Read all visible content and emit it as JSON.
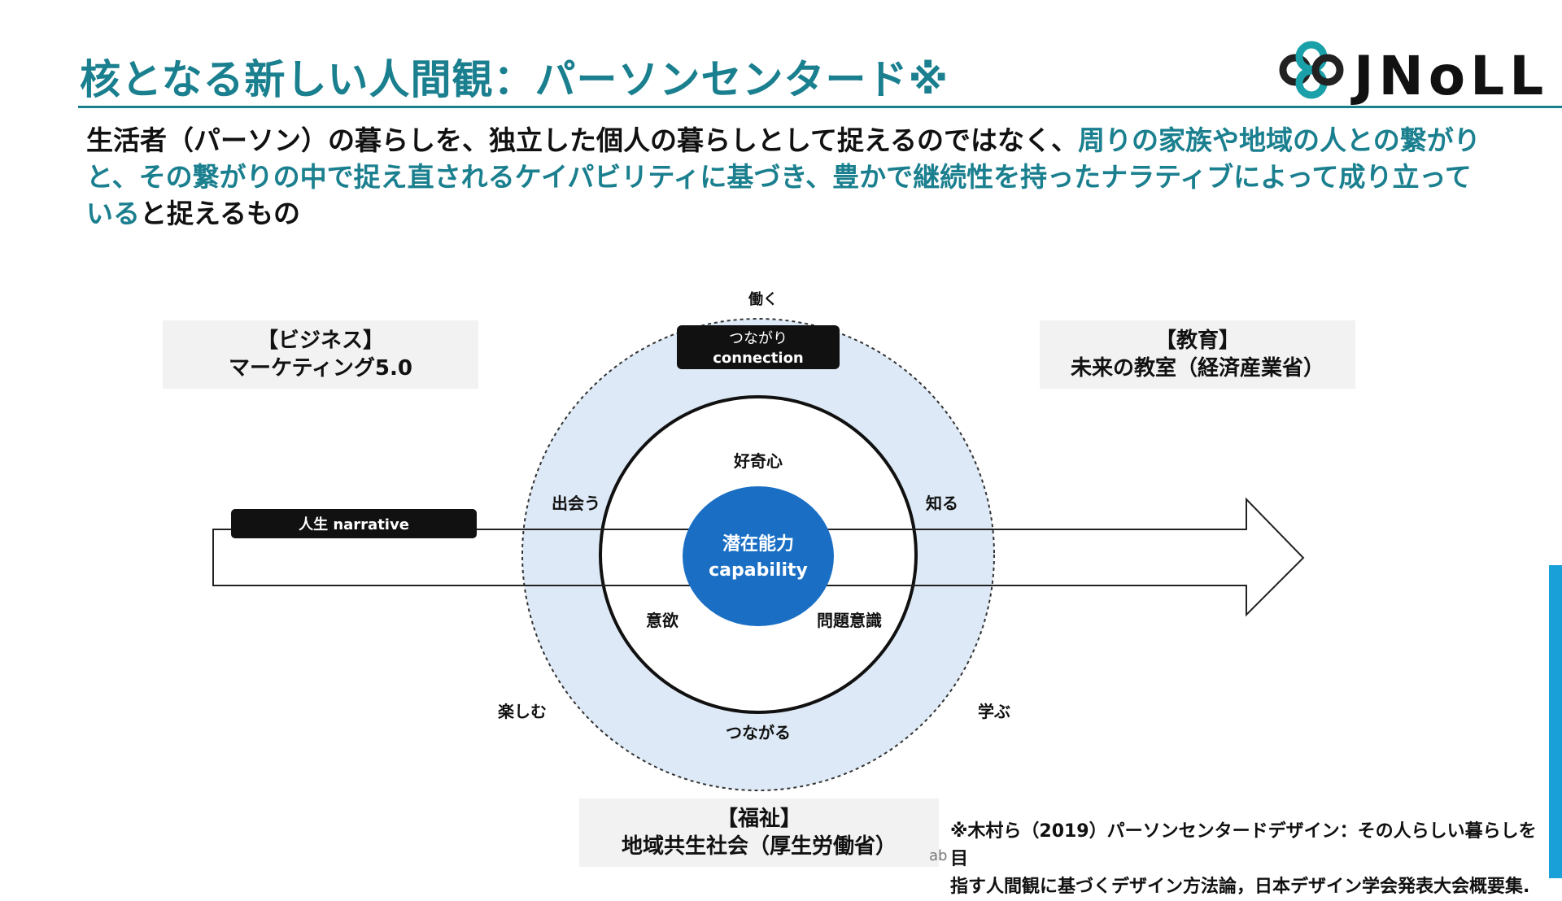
{
  "title": "核となる新しい人間観：パーソンセンタード※",
  "logo": {
    "text": "JNoLL"
  },
  "lead": {
    "part1": "生活者（パーソン）の暮らしを、独立した個人の暮らしとして捉えるのではなく、",
    "part2": "周りの家族や地域の人との繋がりと、その繋がりの中で捉え直されるケイパビリティに基づき、豊かで継続性を持ったナラティブによって成り立っている",
    "part3": "と捉えるもの"
  },
  "boxes": {
    "business": {
      "line1": "【ビジネス】",
      "line2": "マーケティング5.0"
    },
    "education": {
      "line1": "【教育】",
      "line2": "未来の教室（経済産業省）"
    },
    "welfare": {
      "line1": "【福祉】",
      "line2": "地域共生社会（厚生労働省）"
    }
  },
  "diagram": {
    "outer_label": {
      "line1": "つながり",
      "line2": "connection"
    },
    "center": {
      "line1": "潜在能力",
      "line2": "capability"
    },
    "narrative_label": "人生 narrative",
    "outer_words": {
      "top": "働く",
      "upper_left": "出会う",
      "upper_right": "知る",
      "lower_left": "楽しむ",
      "lower_right": "学ぶ",
      "bottom": "つながる"
    },
    "inner_words": {
      "top": "好奇心",
      "lower_left": "意欲",
      "lower_right": "問題意識"
    }
  },
  "footnote": {
    "line1": "※木村ら（2019）パーソンセンタードデザイン：その人らしい暮らしを目",
    "line2": "指す人間観に基づくデザイン方法論，日本デザイン学会発表大会概要集.",
    "fragment": "ab"
  },
  "colors": {
    "teal": "#1a7f8e",
    "blue": "#1a6fc4",
    "light_blue": "#dde9f6",
    "box_gray": "#f2f2f2",
    "accent": "#1aa0d8"
  }
}
